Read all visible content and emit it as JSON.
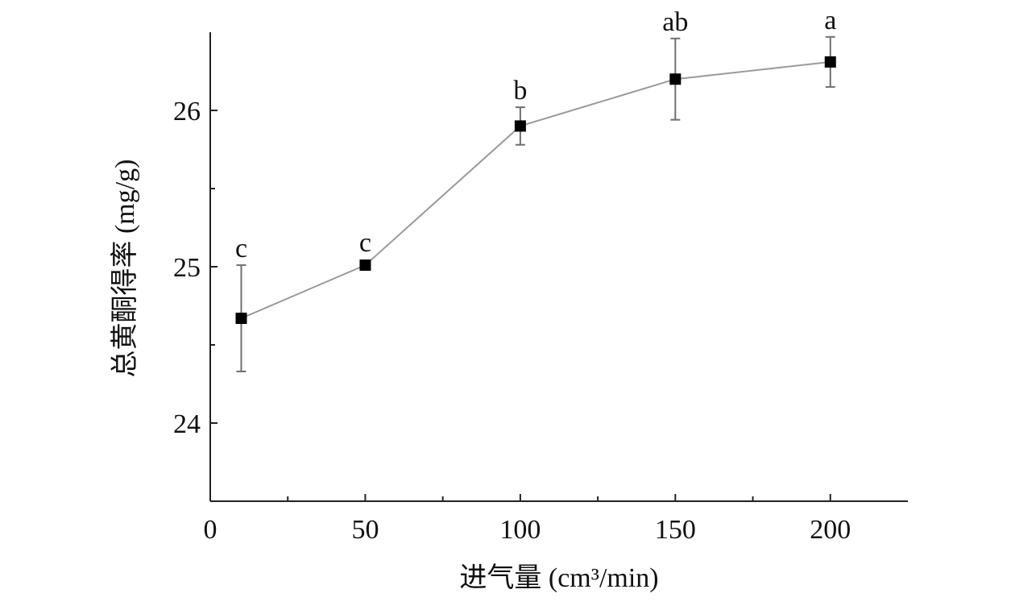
{
  "chart_data": {
    "type": "line",
    "title": "",
    "xlabel": "进气量 (cm³/min)",
    "ylabel": "总黄酮得率 (mg/g)",
    "xlim": [
      0,
      225
    ],
    "ylim": [
      23.5,
      26.5
    ],
    "x_ticks": [
      0,
      50,
      100,
      150,
      200
    ],
    "x_tick_labels": [
      "0",
      "50",
      "100",
      "150",
      "200"
    ],
    "x_minor_ticks": [
      25,
      75,
      125,
      175
    ],
    "y_ticks": [
      24,
      25,
      26
    ],
    "y_tick_labels": [
      "24",
      "25",
      "26"
    ],
    "y_minor_ticks": [
      24.5,
      25.5
    ],
    "grid": false,
    "legend": "none",
    "series": [
      {
        "x": [
          10,
          50,
          100,
          150,
          200
        ],
        "y": [
          24.67,
          25.01,
          25.9,
          26.2,
          26.31
        ],
        "error": [
          0.34,
          0.0,
          0.12,
          0.26,
          0.16
        ],
        "significance_labels": [
          "c",
          "c",
          "b",
          "ab",
          "a"
        ],
        "marker": "square",
        "color": "#000000",
        "line_color": "#9a9a9a"
      }
    ]
  }
}
